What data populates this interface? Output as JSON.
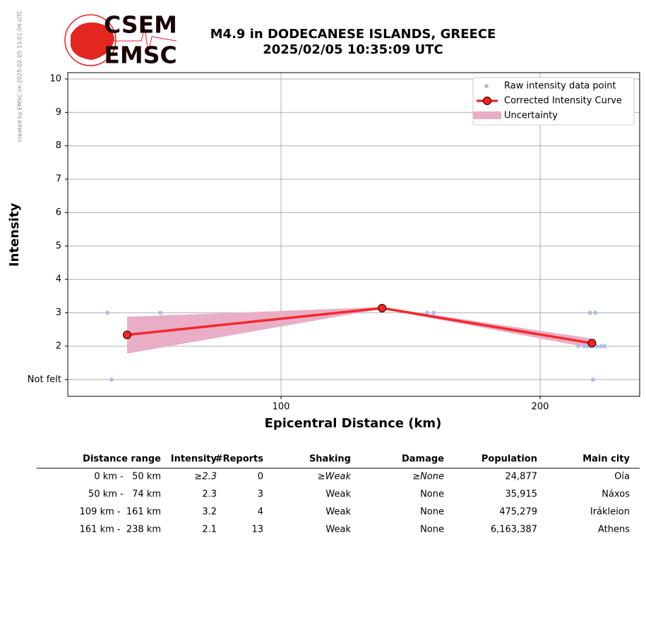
{
  "credit": "created by EMSC on 2025-02-05 13:01:06 UTC",
  "logo": {
    "top": "CSEM",
    "bottom": "EMSC"
  },
  "chart_data": {
    "type": "scatter-curve",
    "title": "M4.9 in DODECANESE ISLANDS, GREECE",
    "subtitle": "2025/02/05 10:35:09 UTC",
    "x_label": "Epicentral Distance (km)",
    "y_label": "Intensity",
    "xlim": [
      17.7,
      238.4
    ],
    "ylim": [
      0.5,
      10.19
    ],
    "xticks": [
      100,
      200
    ],
    "yticks": [
      {
        "value": 1,
        "label": "Not felt"
      },
      2,
      3,
      4,
      5,
      6,
      7,
      8,
      9,
      10
    ],
    "grid": true,
    "legend": "upper right",
    "raw": {
      "name": "Raw intensity data point",
      "color": "#aebde8",
      "x": [
        33,
        34.6,
        53.4,
        156.4,
        158.9,
        214.7,
        216.9,
        218.3,
        219.3,
        220,
        220.4,
        221.3,
        221.8,
        223.4,
        224.8
      ],
      "values": [
        3,
        1,
        3,
        3,
        3,
        2,
        2,
        2,
        3,
        2,
        1,
        3,
        2,
        2,
        2
      ]
    },
    "curve": {
      "name": "Corrected Intensity Curve",
      "color": "#f5282d",
      "marker_color": "#ff2020",
      "x": [
        40.6,
        139,
        220
      ],
      "values": [
        2.34,
        3.14,
        2.09
      ]
    },
    "uncertainty": {
      "name": "Uncertainty",
      "color": "#e9aec6",
      "x": [
        40.6,
        139,
        220
      ],
      "upper": [
        2.88,
        3.17,
        2.23
      ],
      "lower": [
        1.78,
        3.12,
        1.94
      ]
    }
  },
  "table": {
    "header": [
      "Distance range",
      "Intensity",
      "#Reports",
      "Shaking",
      "Damage",
      "Population",
      "Main city"
    ],
    "rows": [
      [
        "0 km -   50 km",
        "≥2.3",
        "0",
        "≥Weak",
        "≥None",
        "24,877",
        "Oía"
      ],
      [
        "50 km -   74 km",
        "2.3",
        "3",
        "Weak",
        "None",
        "35,915",
        "Náxos"
      ],
      [
        "109 km -  161 km",
        "3.2",
        "4",
        "Weak",
        "None",
        "475,279",
        "Irákleion"
      ],
      [
        "161 km -  238 km",
        "2.1",
        "13",
        "Weak",
        "None",
        "6,163,387",
        "Athens"
      ]
    ]
  }
}
